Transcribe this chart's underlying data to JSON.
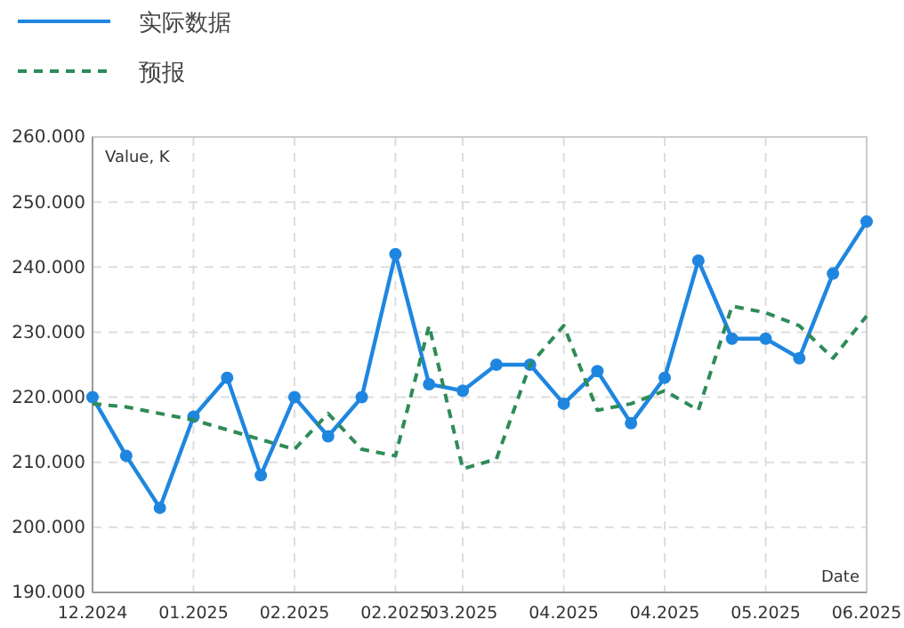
{
  "chart_data": {
    "type": "line",
    "xlabel": "Date",
    "ylabel": "Value, K",
    "categories": [
      "12.2024",
      null,
      null,
      "01.2025",
      null,
      null,
      "02.2025",
      null,
      null,
      "02.2025",
      null,
      "03.2025",
      null,
      null,
      "04.2025",
      null,
      null,
      "04.2025",
      null,
      null,
      "05.2025",
      null,
      null,
      "06.2025"
    ],
    "ylim": [
      190,
      260
    ],
    "yticks": [
      {
        "value": 190,
        "label": "190.000"
      },
      {
        "value": 200,
        "label": "200.000"
      },
      {
        "value": 210,
        "label": "210.000"
      },
      {
        "value": 220,
        "label": "220.000"
      },
      {
        "value": 230,
        "label": "230.000"
      },
      {
        "value": 240,
        "label": "240.000"
      },
      {
        "value": 250,
        "label": "250.000"
      },
      {
        "value": 260,
        "label": "260.000"
      }
    ],
    "grid": true,
    "legend": "top left",
    "series": [
      {
        "name": "实际数据",
        "color": "#1f86e0",
        "marker": "circle",
        "line_style": "solid",
        "values": [
          220,
          211,
          203,
          217,
          223,
          208,
          220,
          214,
          220,
          242,
          222,
          221,
          225,
          225,
          219,
          224,
          216,
          223,
          241,
          229,
          229,
          226,
          239,
          247
        ]
      },
      {
        "name": "预报",
        "color": "#2e8b57",
        "marker": "none",
        "line_style": "dashed",
        "values": [
          219,
          218.5,
          217.5,
          216.5,
          215,
          213.5,
          212,
          217.5,
          212,
          211,
          231,
          209,
          210.5,
          225,
          231,
          218,
          219,
          221,
          218,
          234,
          233,
          231,
          226,
          232.5
        ]
      }
    ]
  }
}
